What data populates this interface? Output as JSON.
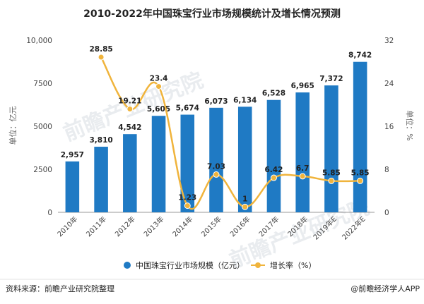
{
  "chart_data": {
    "type": "bar",
    "title": "2010-2022年中国珠宝行业市场规模统计及增长情况预测",
    "categories": [
      "2010年",
      "2011年",
      "2012年",
      "2013年",
      "2014年",
      "2015年",
      "2016年",
      "2017年",
      "2018年",
      "2019年E",
      "2022年E"
    ],
    "ylabel": "单位：亿元",
    "y2label": "单位：%",
    "ylim": [
      0,
      10000
    ],
    "y2lim": [
      0,
      32
    ],
    "yticks": [
      "0",
      "2500",
      "5000",
      "7500",
      "10,000"
    ],
    "y2ticks": [
      "0",
      "8",
      "16",
      "24",
      "32"
    ],
    "grid": false,
    "legend_position": "bottom",
    "series": [
      {
        "name": "中国珠宝行业市场规模（亿元）",
        "type": "bar",
        "axis": "left",
        "values": [
          2957,
          3810,
          4542,
          5605,
          5674,
          6073,
          6134,
          6528,
          6965,
          7372,
          8742
        ],
        "labels": [
          "2,957",
          "3,810",
          "4,542",
          "5,605",
          "5,674",
          "6,073",
          "6,134",
          "6,528",
          "6,965",
          "7,372",
          "8,742"
        ],
        "color": "#1f7ac4"
      },
      {
        "name": "增长率（%）",
        "type": "line",
        "axis": "right",
        "values": [
          null,
          28.85,
          19.21,
          23.4,
          1.23,
          7.03,
          1,
          6.42,
          6.7,
          5.85,
          5.85
        ],
        "labels": [
          "",
          "28.85",
          "19.21",
          "23.4",
          "1.23",
          "7.03",
          "1",
          "6.42",
          "6.7",
          "5.85",
          "5.85"
        ],
        "color": "#f0b43c"
      }
    ]
  },
  "footer": {
    "source": "资料来源：前瞻产业研究院整理",
    "credit": "@前瞻经济学人APP"
  },
  "watermark": "前瞻产业研究院"
}
